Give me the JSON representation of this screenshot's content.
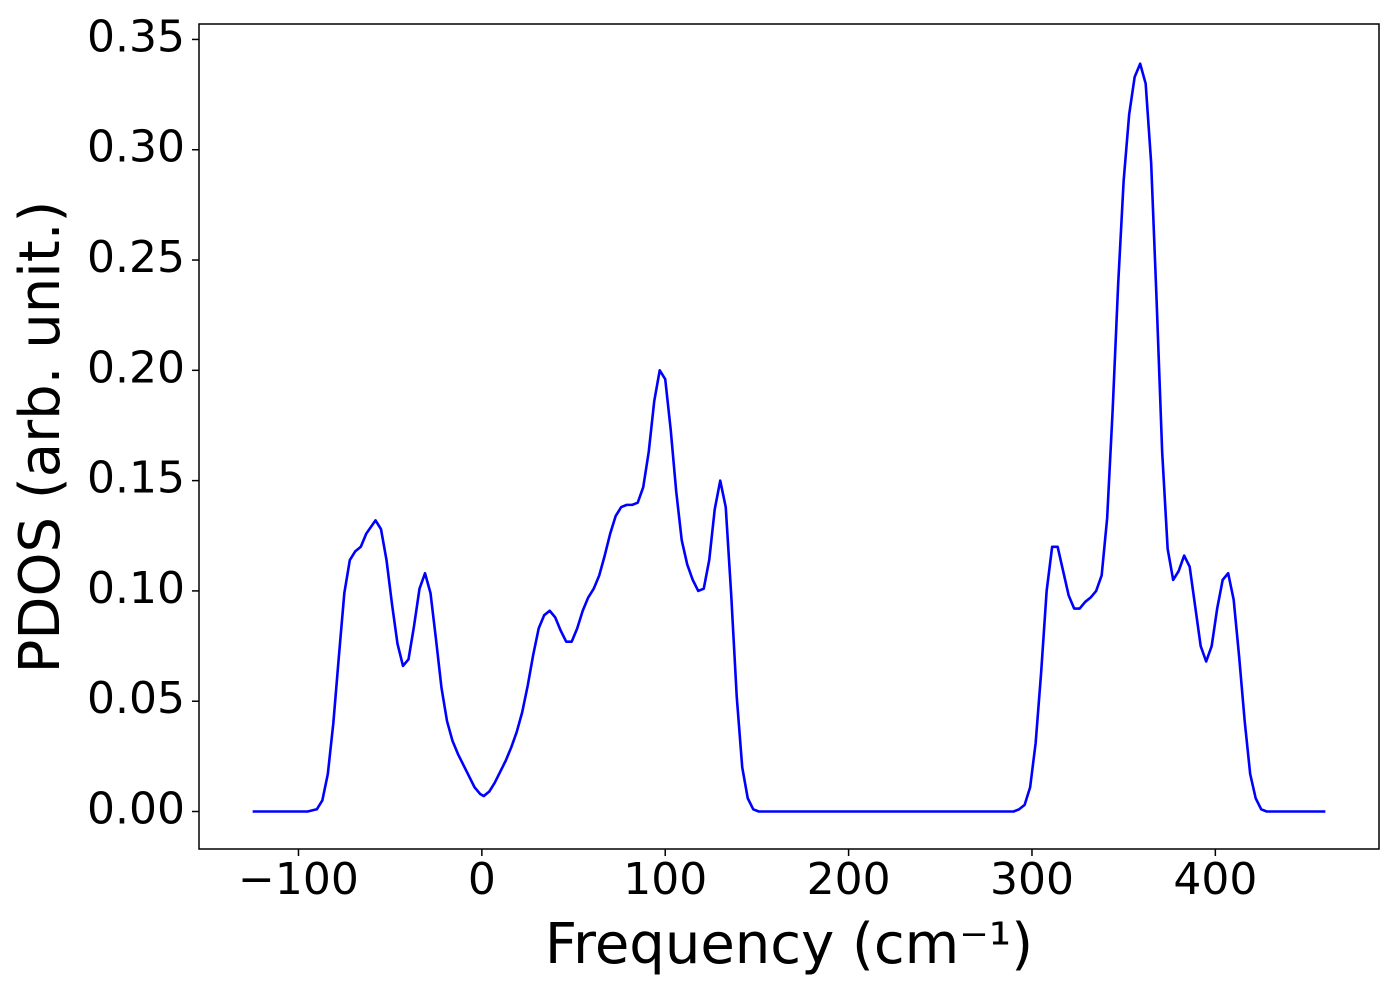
{
  "chart_data": {
    "type": "line",
    "xlabel": "Frequency (cm⁻¹)",
    "ylabel": "PDOS (arb. unit.)",
    "xlim": [
      -154.25,
      489.25
    ],
    "ylim": [
      -0.017,
      0.357
    ],
    "xticks": [
      {
        "value": -100,
        "label": "−100"
      },
      0,
      100,
      200,
      300,
      400
    ],
    "yticks": [
      {
        "value": 0,
        "label": "0.00"
      },
      {
        "value": 0.05,
        "label": "0.05"
      },
      {
        "value": 0.1,
        "label": "0.10"
      },
      {
        "value": 0.15,
        "label": "0.15"
      },
      {
        "value": 0.2,
        "label": "0.20"
      },
      {
        "value": 0.25,
        "label": "0.25"
      },
      {
        "value": 0.3,
        "label": "0.30"
      },
      {
        "value": 0.35,
        "label": "0.35"
      }
    ],
    "grid": false,
    "x": [
      -125,
      -95,
      -90,
      -87,
      -84,
      -81,
      -78,
      -75,
      -72,
      -69,
      -66,
      -63,
      -58,
      -55,
      -52,
      -49,
      -46,
      -43,
      -40,
      -37,
      -34,
      -31,
      -28,
      -25,
      -22,
      -19,
      -16,
      -13,
      -10,
      -7,
      -4,
      -1,
      1,
      4,
      7,
      10,
      13,
      16,
      19,
      22,
      25,
      28,
      31,
      34,
      37,
      40,
      43,
      46,
      49,
      52,
      55,
      58,
      61,
      64,
      67,
      70,
      73,
      76,
      79,
      82,
      85,
      88,
      91,
      94,
      97,
      100,
      103,
      106,
      109,
      112,
      115,
      118,
      121,
      124,
      127,
      130,
      133,
      136,
      139,
      142,
      145,
      148,
      151,
      290,
      293,
      296,
      299,
      302,
      305,
      308,
      311,
      314,
      317,
      320,
      323,
      326,
      329,
      332,
      335,
      338,
      341,
      344,
      347,
      350,
      353,
      356,
      359,
      362,
      365,
      368,
      371,
      374,
      377,
      380,
      383,
      386,
      389,
      392,
      395,
      398,
      401,
      404,
      407,
      410,
      413,
      416,
      419,
      422,
      425,
      428,
      460
    ],
    "series": [
      {
        "name": "PDOS",
        "color": "#0000ff",
        "values": [
          0,
          0,
          0.001,
          0.005,
          0.017,
          0.04,
          0.07,
          0.099,
          0.114,
          0.118,
          0.12,
          0.126,
          0.132,
          0.128,
          0.114,
          0.094,
          0.076,
          0.066,
          0.069,
          0.084,
          0.101,
          0.108,
          0.099,
          0.078,
          0.056,
          0.041,
          0.032,
          0.026,
          0.021,
          0.016,
          0.011,
          0.008,
          0.007,
          0.009,
          0.013,
          0.018,
          0.023,
          0.029,
          0.036,
          0.045,
          0.057,
          0.071,
          0.083,
          0.089,
          0.091,
          0.088,
          0.082,
          0.077,
          0.077,
          0.083,
          0.091,
          0.097,
          0.101,
          0.107,
          0.116,
          0.126,
          0.134,
          0.138,
          0.139,
          0.139,
          0.14,
          0.147,
          0.163,
          0.186,
          0.2,
          0.196,
          0.173,
          0.145,
          0.123,
          0.112,
          0.105,
          0.1,
          0.101,
          0.114,
          0.137,
          0.15,
          0.138,
          0.098,
          0.052,
          0.02,
          0.006,
          0.001,
          0,
          0,
          0.001,
          0.003,
          0.011,
          0.031,
          0.063,
          0.1,
          0.12,
          0.12,
          0.109,
          0.098,
          0.092,
          0.092,
          0.095,
          0.097,
          0.1,
          0.107,
          0.133,
          0.182,
          0.239,
          0.286,
          0.316,
          0.333,
          0.339,
          0.33,
          0.294,
          0.231,
          0.163,
          0.119,
          0.105,
          0.109,
          0.116,
          0.111,
          0.093,
          0.075,
          0.068,
          0.075,
          0.092,
          0.105,
          0.108,
          0.096,
          0.07,
          0.041,
          0.017,
          0.006,
          0.001,
          0,
          0
        ]
      }
    ]
  }
}
